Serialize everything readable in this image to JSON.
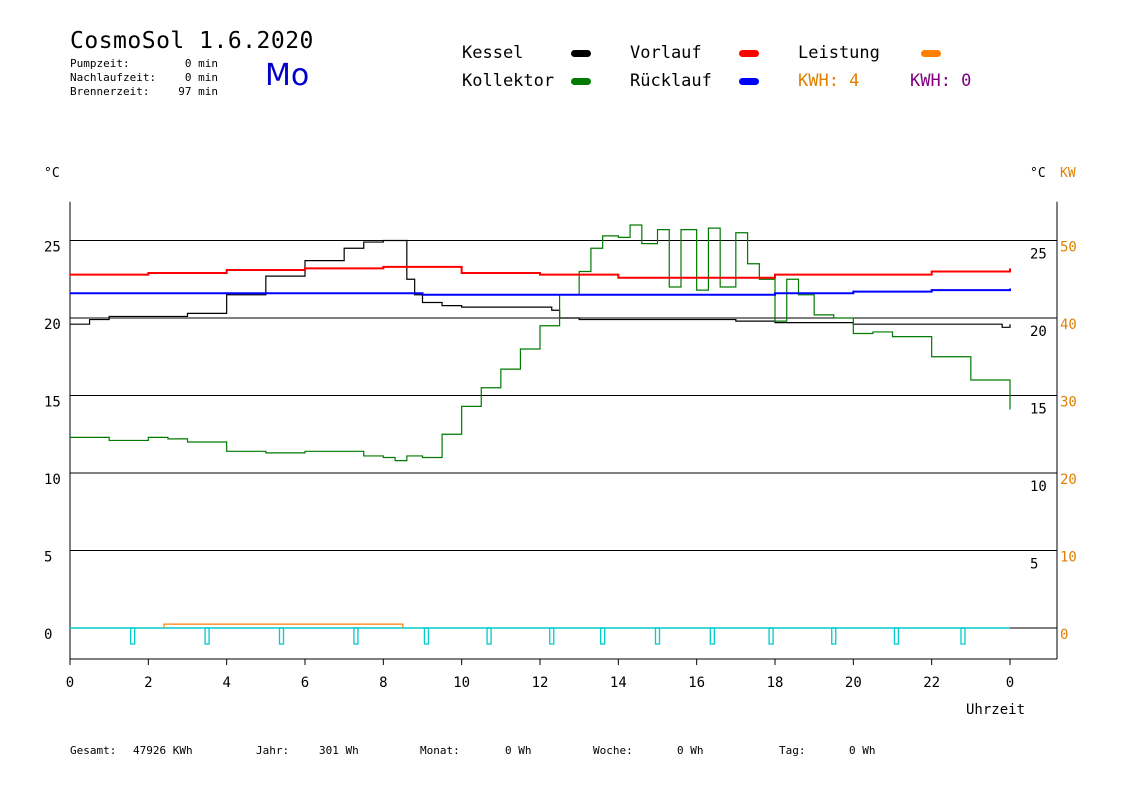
{
  "header": {
    "title": "CosmoSol 1.6.2020",
    "day": "Mo",
    "stats": [
      {
        "label": "Pumpzeit:",
        "value": "0 min"
      },
      {
        "label": "Nachlaufzeit:",
        "value": "0 min"
      },
      {
        "label": "Brennerzeit:",
        "value": "97 min"
      }
    ]
  },
  "legend": {
    "kessel": {
      "label": "Kessel",
      "color": "#000000"
    },
    "kollektor": {
      "label": "Kollektor",
      "color": "#007a00"
    },
    "vorlauf": {
      "label": "Vorlauf",
      "color": "#ff0000"
    },
    "ruecklauf": {
      "label": "Rücklauf",
      "color": "#0000ff"
    },
    "leistung": {
      "label": "Leistung",
      "color": "#ff8000"
    },
    "kwh_solar": "KWH: 4",
    "kwh_other": "KWH: 0",
    "kwh_solar_color": "#e08000",
    "kwh_other_color": "#800080"
  },
  "axes": {
    "left_unit": "°C",
    "right_unit_temp": "°C",
    "right_unit_power": "KW",
    "xlabel": "Uhrzeit"
  },
  "footer": [
    {
      "label": "Gesamt:",
      "value": "47926 KWh"
    },
    {
      "label": "Jahr:",
      "value": "301 Wh"
    },
    {
      "label": "Monat:",
      "value": "0 Wh"
    },
    {
      "label": "Woche:",
      "value": "0 Wh"
    },
    {
      "label": "Tag:",
      "value": "0 Wh"
    }
  ],
  "chart_data": {
    "type": "line",
    "title": "CosmoSol 1.6.2020",
    "xlabel": "Uhrzeit",
    "xlim": [
      0,
      24
    ],
    "x_ticks": [
      "0",
      "2",
      "4",
      "6",
      "8",
      "10",
      "12",
      "14",
      "16",
      "18",
      "20",
      "22",
      "0"
    ],
    "ylim": [
      -2,
      27.5
    ],
    "y_left_ticks": [
      0,
      5,
      10,
      15,
      20,
      25
    ],
    "y_right_temp_ticks": [
      5,
      10,
      15,
      20,
      25
    ],
    "y_right_power_ticks": [
      0,
      10,
      20,
      30,
      40,
      50
    ],
    "y_right_power_unit": "KW",
    "grid": true,
    "series": [
      {
        "name": "Kessel",
        "color": "#000000",
        "x": [
          0,
          0.5,
          1,
          1.5,
          2,
          2.5,
          3,
          4,
          5,
          6,
          7,
          7.5,
          8,
          8.5,
          8.6,
          8.8,
          9.0,
          9.5,
          10,
          11,
          12,
          12.3,
          12.5,
          13,
          14,
          15,
          16,
          17,
          18,
          19,
          20,
          21,
          22,
          23,
          23.8,
          24
        ],
        "y": [
          19.6,
          19.9,
          20.1,
          20.1,
          20.1,
          20.1,
          20.3,
          21.5,
          22.7,
          23.7,
          24.5,
          24.9,
          25.0,
          25.0,
          22.5,
          21.5,
          21.0,
          20.8,
          20.7,
          20.7,
          20.7,
          20.5,
          20.0,
          19.9,
          19.9,
          19.9,
          19.9,
          19.8,
          19.7,
          19.7,
          19.6,
          19.6,
          19.6,
          19.6,
          19.4,
          19.6
        ]
      },
      {
        "name": "Kollektor",
        "color": "#007a00",
        "x": [
          0,
          1,
          2,
          2.5,
          3,
          4,
          5,
          6,
          7,
          7.5,
          8,
          8.3,
          8.6,
          9,
          9.5,
          10,
          10.5,
          11,
          11.5,
          12,
          12.5,
          13,
          13.3,
          13.6,
          14,
          14.3,
          14.6,
          15,
          15.3,
          15.6,
          16,
          16.3,
          16.6,
          17,
          17.3,
          17.6,
          18,
          18.3,
          18.6,
          19,
          19.5,
          20,
          20.5,
          21,
          22,
          23,
          24
        ],
        "y": [
          12.3,
          12.1,
          12.3,
          12.2,
          12.0,
          11.4,
          11.3,
          11.4,
          11.4,
          11.1,
          11.0,
          10.8,
          11.1,
          11.0,
          12.5,
          14.3,
          15.5,
          16.7,
          18.0,
          19.5,
          21.5,
          23.0,
          24.5,
          25.3,
          25.2,
          26.0,
          24.8,
          25.7,
          22.0,
          25.7,
          21.8,
          25.8,
          22.0,
          25.5,
          23.5,
          22.5,
          19.8,
          22.5,
          21.5,
          20.2,
          20.0,
          19.0,
          19.1,
          18.8,
          17.5,
          16.0,
          14.1
        ]
      },
      {
        "name": "Vorlauf",
        "color": "#ff0000",
        "x": [
          0,
          2,
          4,
          6,
          8,
          8.5,
          10,
          12,
          14,
          16,
          18,
          20,
          22,
          24
        ],
        "y": [
          22.8,
          22.9,
          23.1,
          23.2,
          23.3,
          23.3,
          22.9,
          22.8,
          22.6,
          22.6,
          22.8,
          22.8,
          23.0,
          23.2
        ]
      },
      {
        "name": "Rücklauf",
        "color": "#0000ff",
        "x": [
          0,
          2,
          4,
          6,
          8,
          8.5,
          9,
          10,
          12,
          14,
          16,
          18,
          20,
          22,
          24
        ],
        "y": [
          21.6,
          21.6,
          21.6,
          21.6,
          21.6,
          21.6,
          21.5,
          21.5,
          21.5,
          21.5,
          21.5,
          21.6,
          21.7,
          21.8,
          21.9
        ]
      }
    ],
    "leistung": {
      "name": "Leistung",
      "color": "#ff8000",
      "x_start": 2.4,
      "x_end": 8.5,
      "kw": 0.5
    },
    "pump_marker": {
      "color": "#00cccc",
      "x": [
        1.6,
        3.5,
        5.4,
        7.3,
        9.1,
        10.7,
        12.3,
        13.6,
        15.0,
        16.4,
        17.9,
        19.5,
        21.1,
        22.8
      ]
    }
  }
}
